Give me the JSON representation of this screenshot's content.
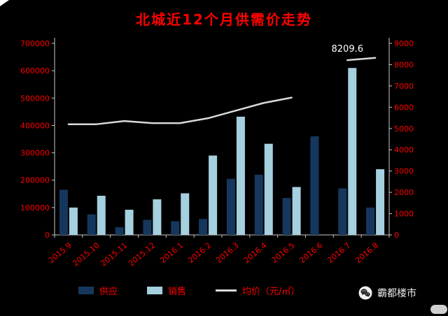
{
  "title": "北城近12个月供需价走势",
  "legend": {
    "supply": "供应",
    "sales": "销售",
    "price": "均价（元/㎡）"
  },
  "brand": "霸都楼市",
  "colors": {
    "background": "#000000",
    "title_text": "#ff0000",
    "axis_text": "#ff0000",
    "axis_line": "#c8c8c8",
    "supply_bar": "#16375d",
    "sales_bar": "#a5d0df",
    "price_line": "#d9d9d9",
    "annotation_text": "#ffffff",
    "brand_text": "#ececec"
  },
  "chart_data": {
    "type": "bar",
    "title": "北城近12个月供需价走势",
    "categories": [
      "2015.9",
      "2015.10",
      "2015.11",
      "2015.12",
      "2016.1",
      "2016.2",
      "2016.3",
      "2016.4",
      "2016.5",
      "2016.6",
      "2016.7",
      "2016.8"
    ],
    "series": [
      {
        "name": "供应",
        "type": "bar",
        "axis": "left",
        "values": [
          165000,
          75000,
          28000,
          55000,
          50000,
          58000,
          205000,
          220000,
          135000,
          360000,
          170000,
          100000
        ]
      },
      {
        "name": "销售",
        "type": "bar",
        "axis": "left",
        "values": [
          100000,
          143000,
          92000,
          130000,
          152000,
          290000,
          432000,
          333000,
          175000,
          0,
          610000,
          240000
        ]
      },
      {
        "name": "均价（元/㎡）",
        "type": "line",
        "axis": "right",
        "values": [
          5200,
          5200,
          5350,
          5250,
          5250,
          5480,
          5840,
          6200,
          6450,
          null,
          8209.6,
          8320
        ]
      }
    ],
    "left_axis": {
      "min": 0,
      "max": 700000,
      "step": 100000,
      "ticks": [
        "0",
        "100000",
        "200000",
        "300000",
        "400000",
        "500000",
        "600000",
        "700000"
      ]
    },
    "right_axis": {
      "min": 0,
      "max": 9000,
      "step": 1000,
      "ticks": [
        "0",
        "1000",
        "2000",
        "3000",
        "4000",
        "5000",
        "6000",
        "7000",
        "8000",
        "9000"
      ]
    },
    "annotation": {
      "text": "8209.6",
      "category_index": 10
    },
    "legend_position": "bottom",
    "grid": false
  }
}
